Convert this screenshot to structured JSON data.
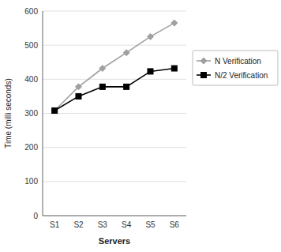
{
  "chart_data": {
    "type": "line",
    "categories": [
      "S1",
      "S2",
      "S3",
      "S4",
      "S5",
      "S6"
    ],
    "series": [
      {
        "name": "N Verification",
        "color": "#a0a0a0",
        "marker": "diamond",
        "values": [
          308,
          378,
          432,
          478,
          525,
          565
        ]
      },
      {
        "name": "N/2 Verification",
        "color": "#000000",
        "marker": "square",
        "values": [
          308,
          350,
          378,
          378,
          423,
          432
        ]
      }
    ],
    "xlabel": "Servers",
    "ylabel": "Time (milli seconds)",
    "ylim": [
      0,
      600
    ],
    "yticks": [
      0,
      100,
      200,
      300,
      400,
      500,
      600
    ],
    "grid": true,
    "legend": "right"
  }
}
